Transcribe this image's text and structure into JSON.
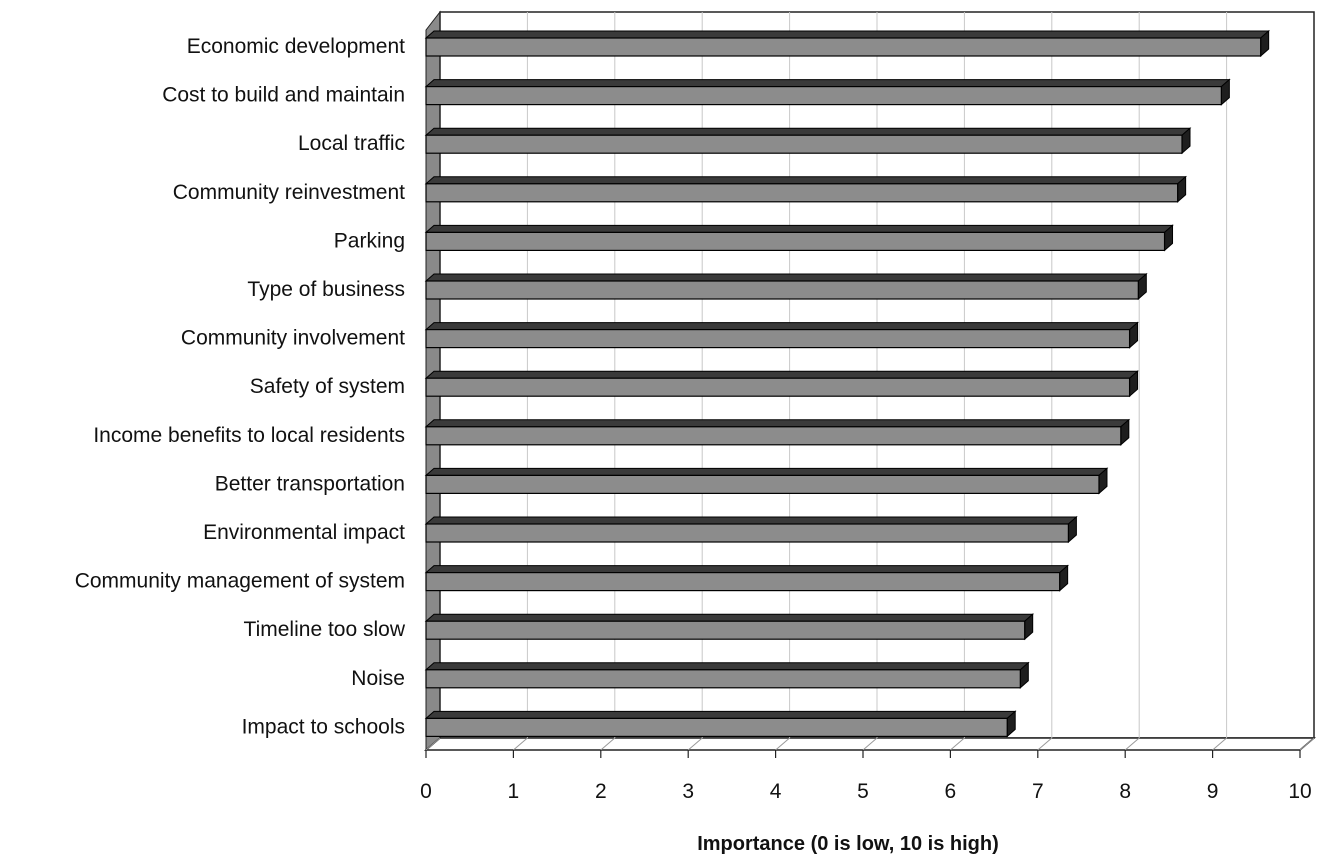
{
  "chart_data": {
    "type": "bar",
    "orientation": "horizontal",
    "style": "3d",
    "title": "",
    "xlabel": "Importance (0 is low, 10 is high)",
    "ylabel": "",
    "xlim": [
      0,
      10
    ],
    "xticks": [
      "0",
      "1",
      "2",
      "3",
      "4",
      "5",
      "6",
      "7",
      "8",
      "9",
      "10"
    ],
    "grid": true,
    "legend": "none",
    "categories": [
      "Economic development",
      "Cost to build and maintain",
      "Local traffic",
      "Community reinvestment",
      "Parking",
      "Type of business",
      "Community involvement",
      "Safety of system",
      "Income benefits to local residents",
      "Better transportation",
      "Environmental impact",
      "Community management of system",
      "Timeline too slow",
      "Noise",
      "Impact to schools"
    ],
    "values": [
      9.55,
      9.1,
      8.65,
      8.6,
      8.45,
      8.15,
      8.05,
      8.05,
      7.95,
      7.7,
      7.35,
      7.25,
      6.85,
      6.8,
      6.65
    ],
    "colors": {
      "bar_front": "#8c8c8c",
      "bar_top": "#3a3a3a",
      "bar_side": "#1e1e1e",
      "wall": "#8a8a8a",
      "grid": "#c8c8c8",
      "frame": "#222222"
    }
  }
}
